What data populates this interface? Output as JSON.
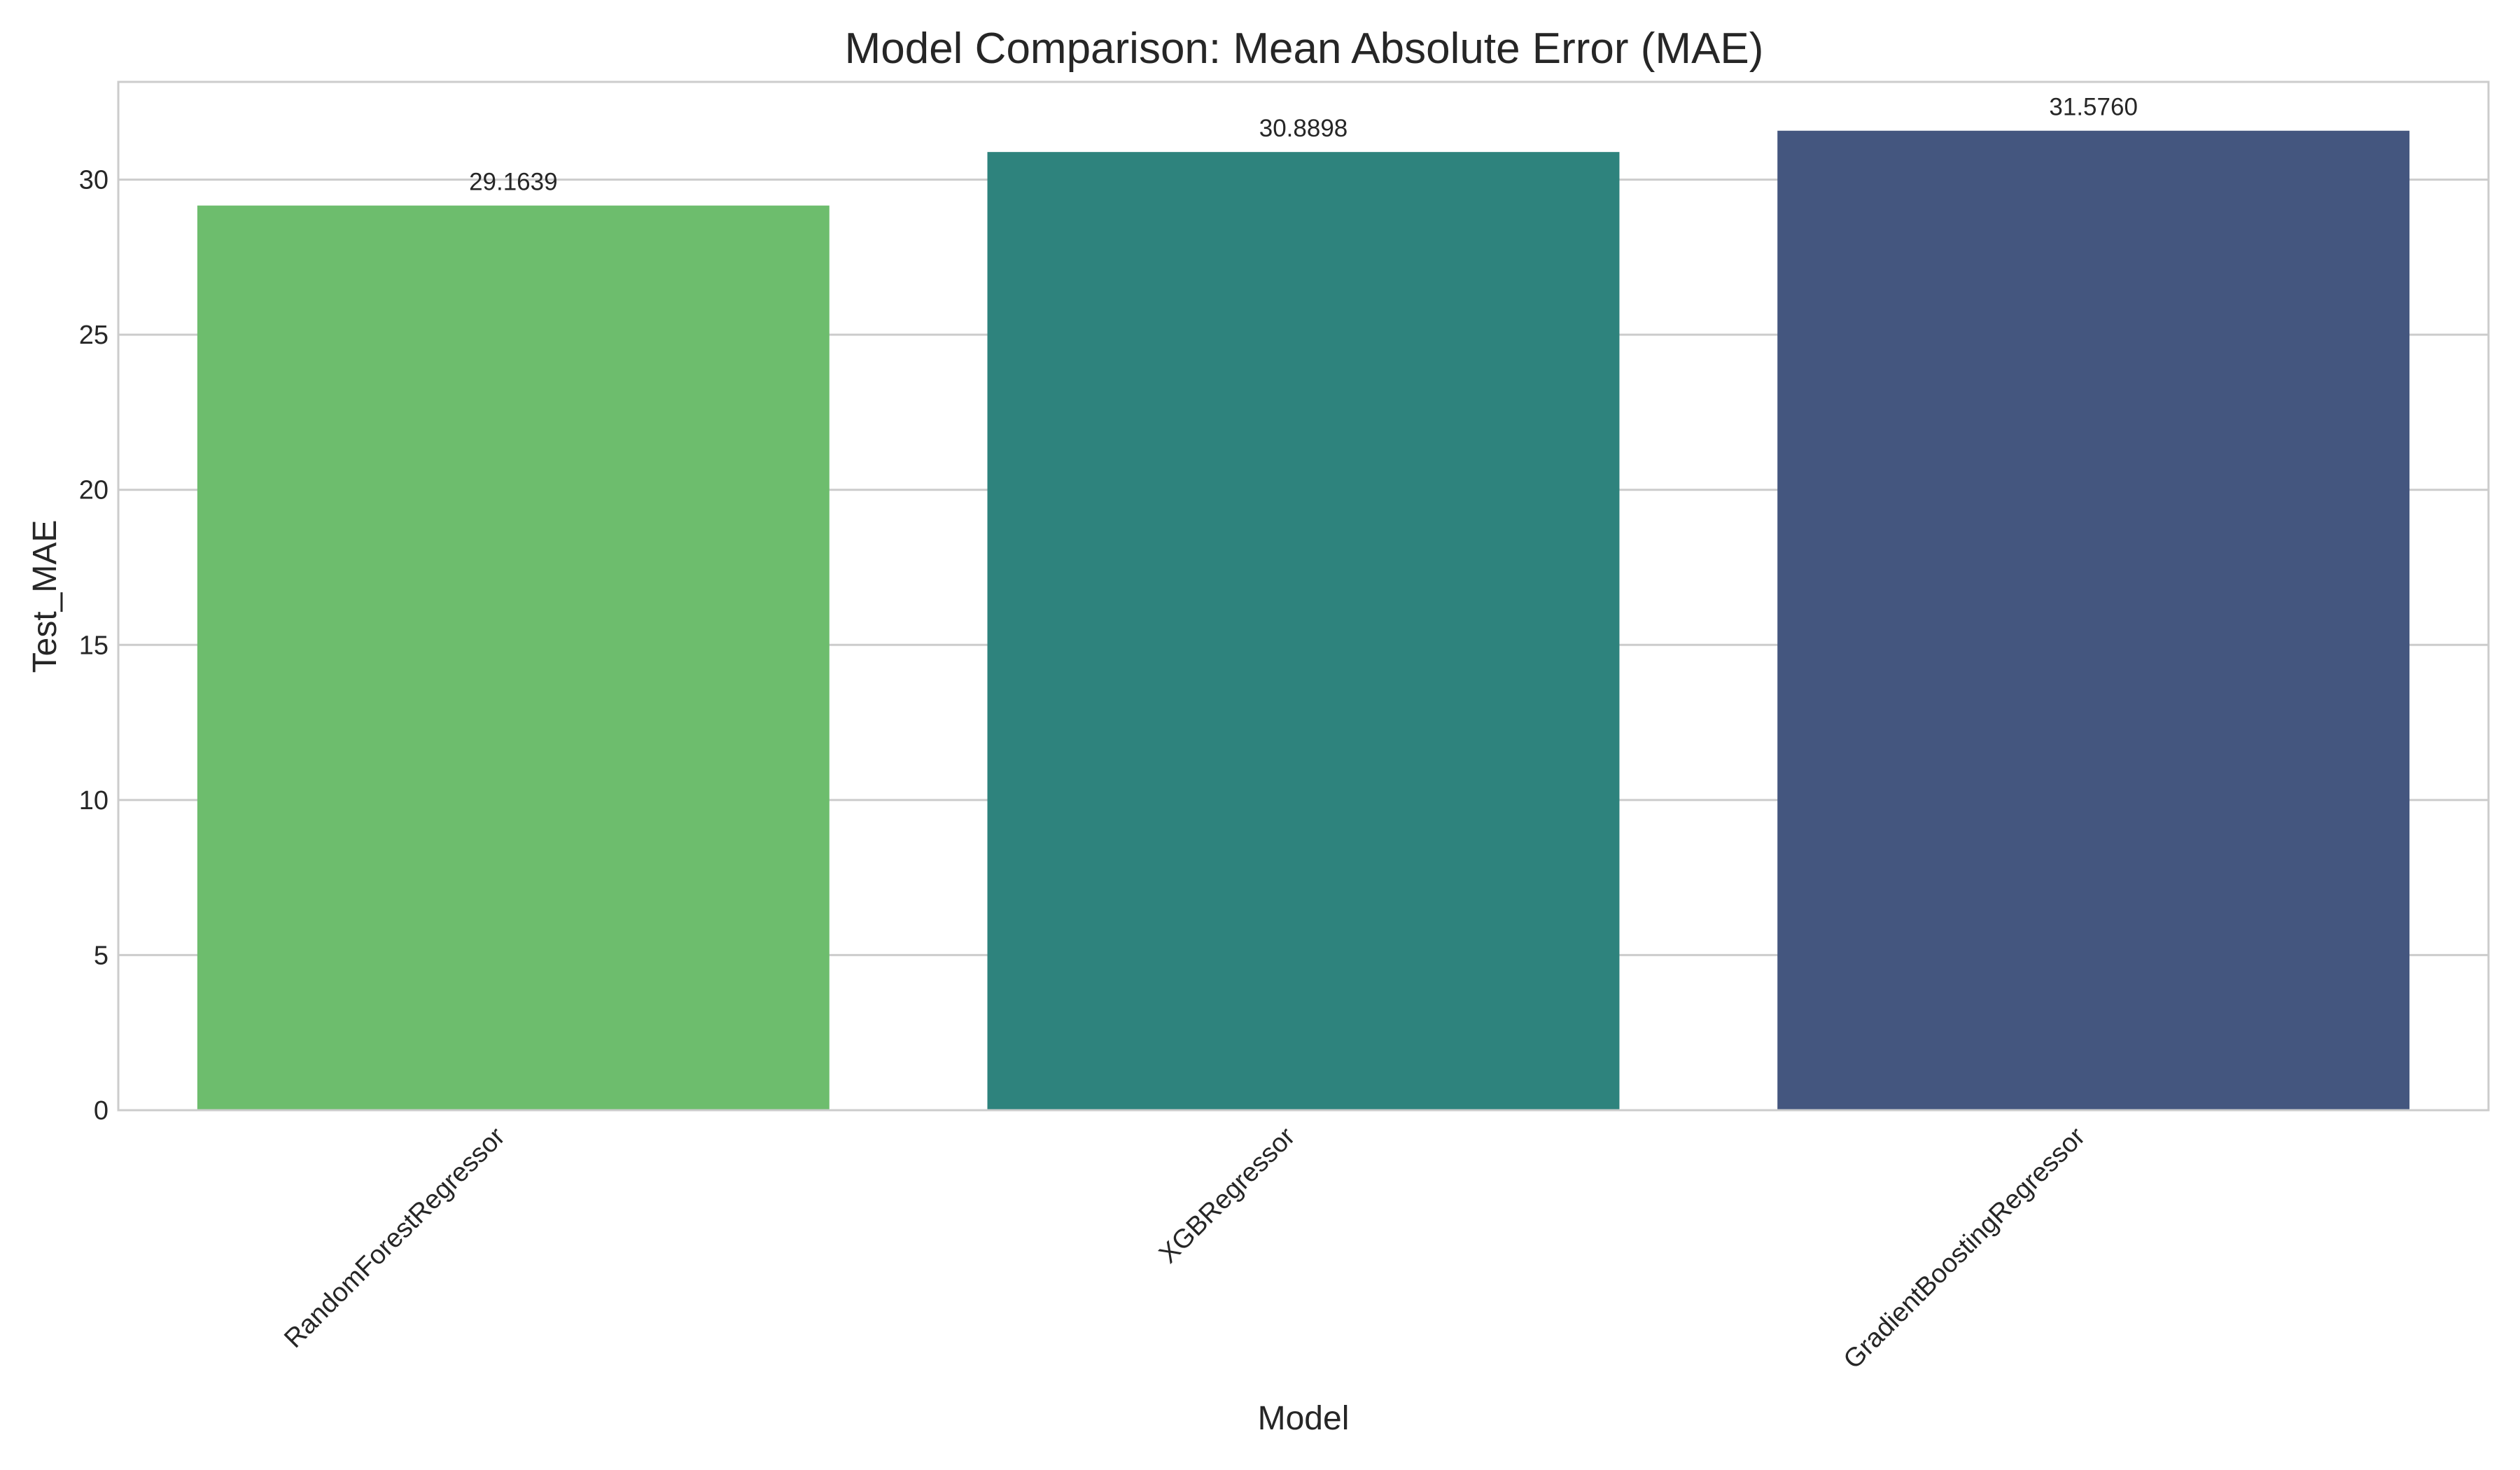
{
  "chart_data": {
    "type": "bar",
    "title": "Model Comparison: Mean Absolute Error (MAE)",
    "xlabel": "Model",
    "ylabel": "Test_MAE",
    "categories": [
      "RandomForestRegressor",
      "XGBRegressor",
      "GradientBoostingRegressor"
    ],
    "values": [
      29.1639,
      30.8898,
      31.576
    ],
    "value_labels": [
      "29.1639",
      "30.8898",
      "31.5760"
    ],
    "colors": [
      "#6dbd6d",
      "#2e837d",
      "#44567f"
    ],
    "ylim": [
      0,
      33.15
    ],
    "yticks": [
      0,
      5,
      10,
      15,
      20,
      25,
      30
    ],
    "grid": "horizontal",
    "legend": "none"
  }
}
